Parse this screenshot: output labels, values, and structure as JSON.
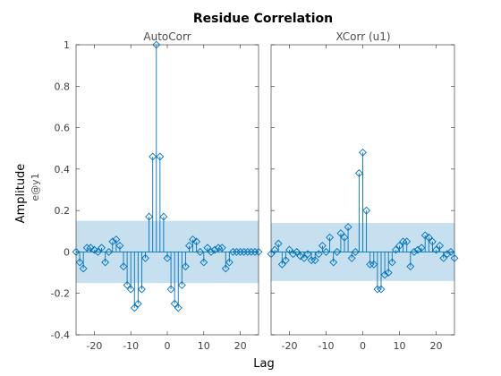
{
  "chart_data": {
    "type": "stem",
    "title": "Residue Correlation",
    "ylabel": "Amplitude",
    "ylabel_sub": "e@y1",
    "xlabel": "Lag",
    "ylim": [
      -0.4,
      1
    ],
    "yticks": [
      -0.4,
      -0.2,
      0,
      0.2,
      0.4,
      0.6,
      0.8,
      1
    ],
    "stem_color": "#0072bd",
    "band_color": "#c6e0f0",
    "panels": [
      {
        "title": "AutoCorr",
        "xlim": [
          -25,
          25
        ],
        "xticks": [
          -20,
          -10,
          0,
          10,
          20
        ],
        "confidence_band": [
          -0.15,
          0.15
        ],
        "lags": [
          -25,
          -24,
          -23,
          -22,
          -21,
          -20,
          -19,
          -18,
          -17,
          -16,
          -15,
          -14,
          -13,
          -12,
          -11,
          -10,
          -9,
          -8,
          -7,
          -6,
          -5,
          -4,
          -3,
          -2,
          -1,
          0,
          1,
          2,
          3,
          4,
          5,
          6,
          7,
          8,
          9,
          10,
          11,
          12,
          13,
          14,
          15,
          16,
          17,
          18,
          19,
          20,
          21,
          22,
          23,
          24,
          25
        ],
        "values": [
          0.0,
          -0.05,
          -0.08,
          0.02,
          0.02,
          0.01,
          0.0,
          0.02,
          -0.05,
          0.0,
          0.05,
          0.06,
          0.03,
          -0.07,
          -0.16,
          -0.18,
          -0.27,
          -0.25,
          -0.18,
          -0.03,
          0.17,
          0.46,
          1.0,
          0.46,
          0.17,
          -0.03,
          -0.18,
          -0.25,
          -0.27,
          -0.16,
          -0.07,
          0.03,
          0.06,
          0.05,
          0.0,
          -0.05,
          0.02,
          0.0,
          0.01,
          0.02,
          0.02,
          -0.08,
          -0.05,
          0.0,
          0.0,
          0.0,
          0.0,
          0.0,
          0.0,
          0.0,
          0.0
        ]
      },
      {
        "title": "XCorr (u1)",
        "xlim": [
          -25,
          25
        ],
        "xticks": [
          -20,
          -10,
          0,
          10,
          20
        ],
        "confidence_band": [
          -0.14,
          0.14
        ],
        "lags": [
          -25,
          -24,
          -23,
          -22,
          -21,
          -20,
          -19,
          -18,
          -17,
          -16,
          -15,
          -14,
          -13,
          -12,
          -11,
          -10,
          -9,
          -8,
          -7,
          -6,
          -5,
          -4,
          -3,
          -2,
          -1,
          0,
          1,
          2,
          3,
          4,
          5,
          6,
          7,
          8,
          9,
          10,
          11,
          12,
          13,
          14,
          15,
          16,
          17,
          18,
          19,
          20,
          21,
          22,
          23,
          24,
          25
        ],
        "values": [
          -0.01,
          0.01,
          0.04,
          -0.06,
          -0.04,
          0.01,
          -0.01,
          0.0,
          -0.02,
          -0.03,
          -0.01,
          -0.04,
          -0.04,
          -0.01,
          0.03,
          0.0,
          0.07,
          -0.05,
          0.0,
          0.09,
          0.07,
          0.12,
          -0.03,
          0.0,
          0.38,
          0.48,
          0.2,
          -0.06,
          -0.06,
          -0.18,
          -0.18,
          -0.11,
          -0.1,
          -0.05,
          0.01,
          0.03,
          0.05,
          0.05,
          -0.07,
          0.0,
          0.01,
          0.02,
          0.08,
          0.07,
          0.05,
          0.01,
          0.03,
          -0.03,
          -0.01,
          0.0,
          -0.03
        ]
      }
    ]
  }
}
